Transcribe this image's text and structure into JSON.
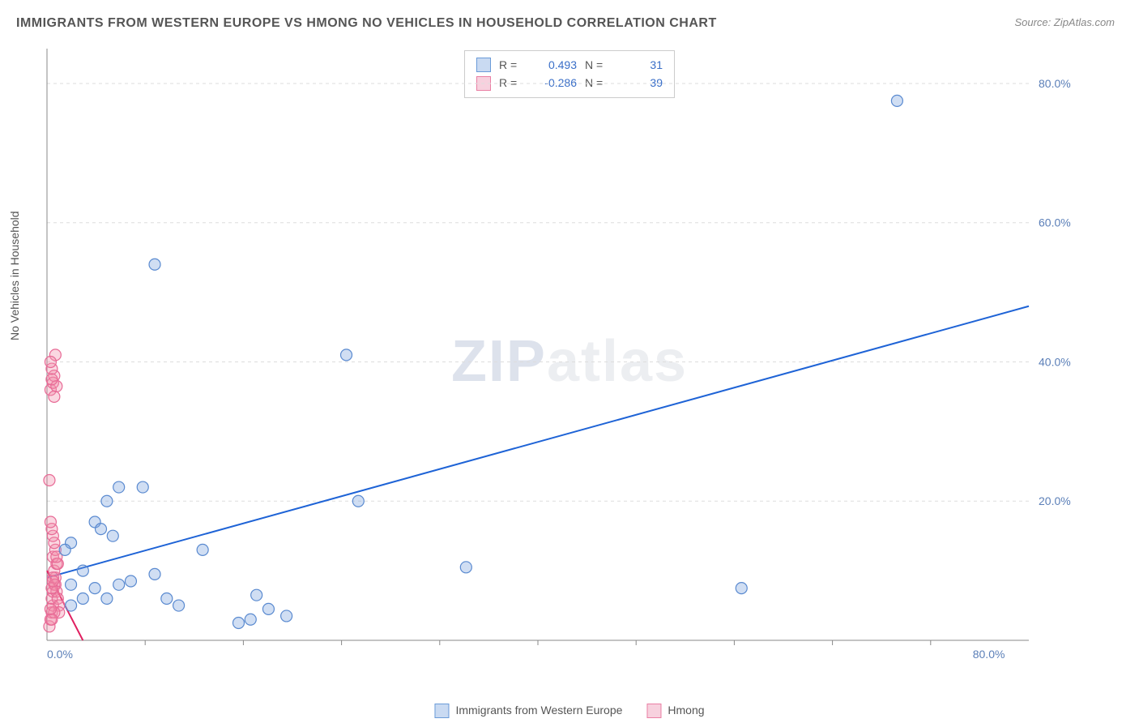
{
  "title": "IMMIGRANTS FROM WESTERN EUROPE VS HMONG NO VEHICLES IN HOUSEHOLD CORRELATION CHART",
  "source": "Source: ZipAtlas.com",
  "watermark": {
    "zip": "ZIP",
    "atlas": "atlas"
  },
  "ylabel": "No Vehicles in Household",
  "chart": {
    "type": "scatter",
    "xlim": [
      0,
      82
    ],
    "ylim": [
      0,
      85
    ],
    "x_ticks": [
      0,
      80
    ],
    "y_ticks": [
      20,
      40,
      60,
      80
    ],
    "y_grid": [
      20,
      40,
      60,
      80
    ],
    "x_minor_ticks": [
      8.2,
      16.4,
      24.6,
      32.8,
      41.0,
      49.2,
      57.4,
      65.6,
      73.8
    ],
    "tick_suffix": ".0%",
    "axis_color": "#888888",
    "grid_color": "#dddddd",
    "grid_dash": "4,4",
    "background": "#ffffff",
    "marker_radius": 7,
    "marker_stroke_width": 1.2,
    "line_width": 2,
    "series": [
      {
        "name": "Immigrants from Western Europe",
        "legend_label": "Immigrants from Western Europe",
        "fill": "rgba(120,160,220,0.35)",
        "stroke": "#5a8ad0",
        "swatch_fill": "#c9daf2",
        "swatch_stroke": "#6a9bd8",
        "R": "0.493",
        "N": "31",
        "trend": {
          "x1": 0,
          "y1": 9,
          "x2": 82,
          "y2": 48,
          "color": "#1e63d6"
        },
        "points": [
          {
            "x": 2,
            "y": 5
          },
          {
            "x": 3,
            "y": 6
          },
          {
            "x": 4,
            "y": 7.5
          },
          {
            "x": 5,
            "y": 6
          },
          {
            "x": 6,
            "y": 22
          },
          {
            "x": 8,
            "y": 22
          },
          {
            "x": 5,
            "y": 20
          },
          {
            "x": 4,
            "y": 17
          },
          {
            "x": 3,
            "y": 10
          },
          {
            "x": 2,
            "y": 8
          },
          {
            "x": 2,
            "y": 14
          },
          {
            "x": 6,
            "y": 8
          },
          {
            "x": 7,
            "y": 8.5
          },
          {
            "x": 9,
            "y": 9.5
          },
          {
            "x": 10,
            "y": 6
          },
          {
            "x": 11,
            "y": 5
          },
          {
            "x": 13,
            "y": 13
          },
          {
            "x": 16,
            "y": 2.5
          },
          {
            "x": 17,
            "y": 3
          },
          {
            "x": 17.5,
            "y": 6.5
          },
          {
            "x": 18.5,
            "y": 4.5
          },
          {
            "x": 20,
            "y": 3.5
          },
          {
            "x": 25,
            "y": 41
          },
          {
            "x": 26,
            "y": 20
          },
          {
            "x": 35,
            "y": 10.5
          },
          {
            "x": 9,
            "y": 54
          },
          {
            "x": 58,
            "y": 7.5
          },
          {
            "x": 71,
            "y": 77.5
          },
          {
            "x": 4.5,
            "y": 16
          },
          {
            "x": 5.5,
            "y": 15
          },
          {
            "x": 1.5,
            "y": 13
          }
        ]
      },
      {
        "name": "Hmong",
        "legend_label": "Hmong",
        "fill": "rgba(240,140,170,0.35)",
        "stroke": "#e86a96",
        "swatch_fill": "#f7d1de",
        "swatch_stroke": "#ea7fa4",
        "R": "-0.286",
        "N": "39",
        "trend": {
          "x1": 0,
          "y1": 10,
          "x2": 3,
          "y2": 0,
          "color": "#e02060"
        },
        "points": [
          {
            "x": 0.2,
            "y": 2
          },
          {
            "x": 0.3,
            "y": 3
          },
          {
            "x": 0.4,
            "y": 4
          },
          {
            "x": 0.5,
            "y": 5
          },
          {
            "x": 0.4,
            "y": 6
          },
          {
            "x": 0.5,
            "y": 7
          },
          {
            "x": 0.6,
            "y": 8
          },
          {
            "x": 0.7,
            "y": 9
          },
          {
            "x": 0.6,
            "y": 10
          },
          {
            "x": 0.8,
            "y": 11
          },
          {
            "x": 0.5,
            "y": 12
          },
          {
            "x": 0.7,
            "y": 13
          },
          {
            "x": 0.6,
            "y": 14
          },
          {
            "x": 0.5,
            "y": 15
          },
          {
            "x": 0.4,
            "y": 16
          },
          {
            "x": 0.3,
            "y": 17
          },
          {
            "x": 0.5,
            "y": 9
          },
          {
            "x": 0.7,
            "y": 8
          },
          {
            "x": 0.8,
            "y": 7
          },
          {
            "x": 0.9,
            "y": 6
          },
          {
            "x": 1.0,
            "y": 5
          },
          {
            "x": 1.0,
            "y": 4
          },
          {
            "x": 0.9,
            "y": 11
          },
          {
            "x": 0.8,
            "y": 12
          },
          {
            "x": 0.6,
            "y": 4
          },
          {
            "x": 0.4,
            "y": 3
          },
          {
            "x": 0.3,
            "y": 4.5
          },
          {
            "x": 0.4,
            "y": 7.5
          },
          {
            "x": 0.5,
            "y": 8.5
          },
          {
            "x": 0.2,
            "y": 23
          },
          {
            "x": 0.3,
            "y": 36
          },
          {
            "x": 0.5,
            "y": 37
          },
          {
            "x": 0.6,
            "y": 38
          },
          {
            "x": 0.4,
            "y": 39
          },
          {
            "x": 0.7,
            "y": 41
          },
          {
            "x": 0.3,
            "y": 40
          },
          {
            "x": 0.8,
            "y": 36.5
          },
          {
            "x": 0.4,
            "y": 37.5
          },
          {
            "x": 0.6,
            "y": 35
          }
        ]
      }
    ]
  },
  "stats_labels": {
    "r": "R =",
    "n": "N ="
  },
  "stats_value_color": "#3a6fc8"
}
